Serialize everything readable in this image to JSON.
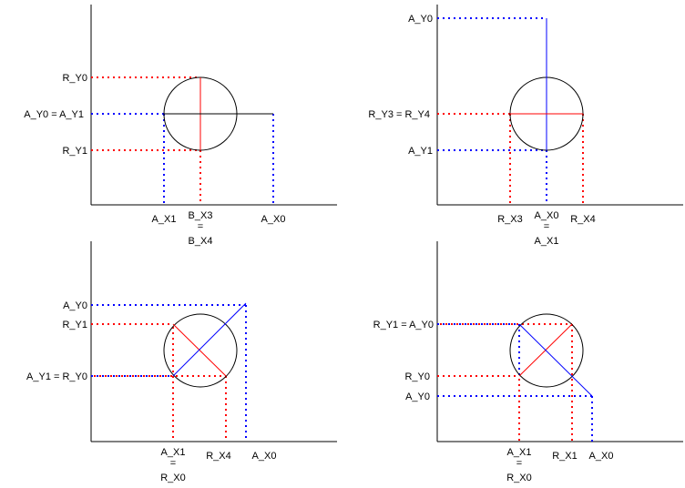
{
  "colors": {
    "red": "#ff0000",
    "blue": "#0000ff",
    "black": "#000000"
  },
  "panels": [
    {
      "y_labels": [
        "R_Y0",
        "A_Y0 = A_Y1",
        "R_Y1"
      ],
      "x_labels": [
        "A_X1",
        "B_X3",
        "=",
        "B_X4",
        "A_X0"
      ]
    },
    {
      "y_labels": [
        "A_Y0",
        "R_Y3 = R_Y4",
        "A_Y1"
      ],
      "x_labels": [
        "R_X3",
        "A_X0",
        "=",
        "A_X1",
        "R_X4"
      ]
    },
    {
      "y_labels": [
        "A_Y0",
        "R_Y1",
        "A_Y1 = R_Y0"
      ],
      "x_labels": [
        "A_X1",
        "=",
        "R_X0",
        "R_X4",
        "A_X0"
      ]
    },
    {
      "y_labels": [
        "R_Y1 = A_Y0",
        "R_Y0",
        "A_Y0"
      ],
      "x_labels": [
        "A_X1",
        "=",
        "R_X0",
        "R_X1",
        "A_X0"
      ]
    }
  ]
}
